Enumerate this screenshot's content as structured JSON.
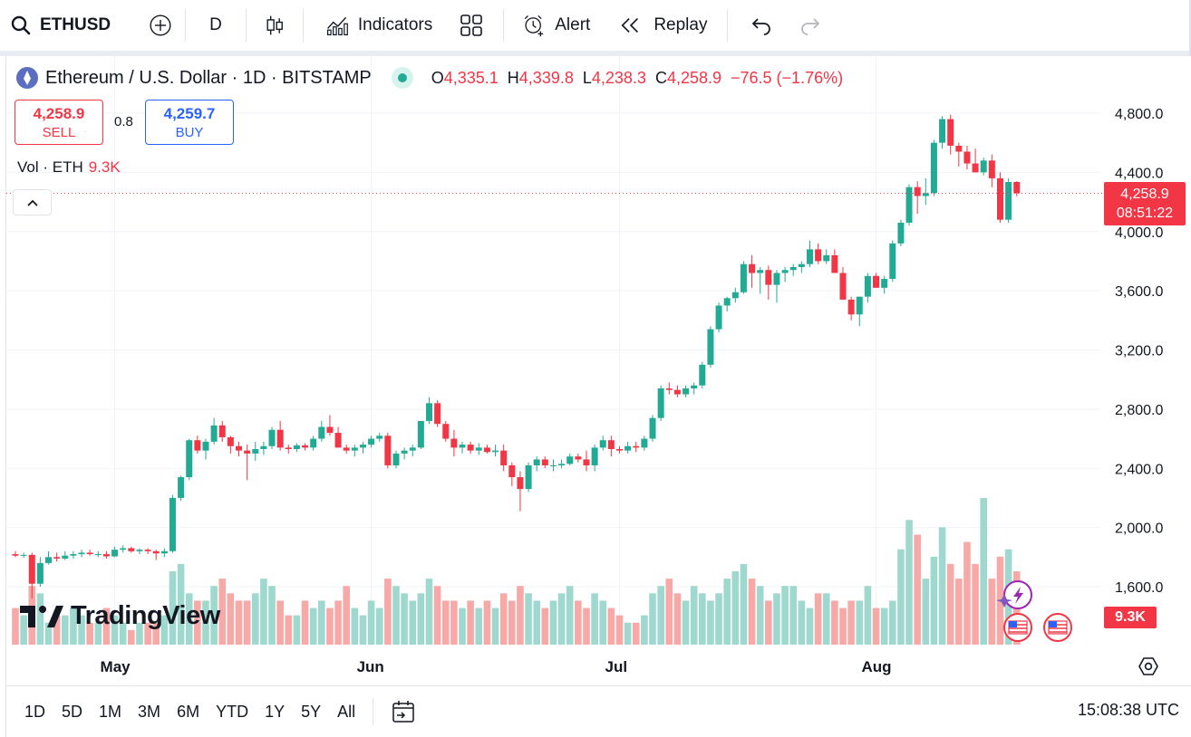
{
  "toolbar": {
    "symbol": "ETHUSD",
    "interval": "D",
    "indicators_label": "Indicators",
    "alert_label": "Alert",
    "replay_label": "Replay"
  },
  "legend": {
    "title": "Ethereum / U.S. Dollar · 1D · BITSTAMP",
    "o_key": "O",
    "o_val": "4,335.1",
    "h_key": "H",
    "h_val": "4,339.8",
    "l_key": "L",
    "l_val": "4,238.3",
    "c_key": "C",
    "c_val": "4,258.9",
    "change": "−76.5 (−1.76%)"
  },
  "trade": {
    "sell_price": "4,258.9",
    "sell_label": "SELL",
    "spread": "0.8",
    "buy_price": "4,259.7",
    "buy_label": "BUY"
  },
  "volume": {
    "label": "Vol · ETH",
    "value": "9.3K"
  },
  "brand": {
    "name": "TradingView"
  },
  "price_tag": {
    "price": "4,258.9",
    "countdown": "08:51:22"
  },
  "vol_tag": "9.3K",
  "bottom": {
    "ranges": [
      "1D",
      "5D",
      "1M",
      "3M",
      "6M",
      "YTD",
      "1Y",
      "5Y",
      "All"
    ],
    "clock": "15:08:38 UTC"
  },
  "colors": {
    "up": "#22ab94",
    "down": "#f23645",
    "up_vol": "#9fd8cf",
    "down_vol": "#f7a9a8"
  },
  "chart_data": {
    "type": "candlestick",
    "y_axis_ticks": [
      "4,800.0",
      "4,400.0",
      "4,000.0",
      "3,600.0",
      "3,200.0",
      "2,800.0",
      "2,400.0",
      "2,000.0",
      "1,600.0"
    ],
    "y_axis_values": [
      4800,
      4400,
      4000,
      3600,
      3200,
      2800,
      2400,
      2000,
      1600
    ],
    "x_axis_labels": [
      "May",
      "Jun",
      "Jul",
      "Aug"
    ],
    "x_label_indices": [
      12,
      43,
      73,
      104
    ],
    "current_price": 4258.9,
    "candles": [
      [
        1820,
        1840,
        1800,
        1810
      ],
      [
        1810,
        1830,
        1795,
        1815
      ],
      [
        1815,
        1830,
        1520,
        1620
      ],
      [
        1620,
        1800,
        1600,
        1760
      ],
      [
        1760,
        1840,
        1750,
        1800
      ],
      [
        1800,
        1830,
        1770,
        1790
      ],
      [
        1790,
        1840,
        1780,
        1810
      ],
      [
        1810,
        1840,
        1790,
        1820
      ],
      [
        1820,
        1850,
        1800,
        1830
      ],
      [
        1830,
        1850,
        1810,
        1820
      ],
      [
        1820,
        1840,
        1800,
        1820
      ],
      [
        1820,
        1840,
        1790,
        1805
      ],
      [
        1805,
        1870,
        1800,
        1850
      ],
      [
        1850,
        1880,
        1830,
        1860
      ],
      [
        1860,
        1870,
        1830,
        1840
      ],
      [
        1840,
        1860,
        1820,
        1850
      ],
      [
        1850,
        1860,
        1820,
        1840
      ],
      [
        1840,
        1850,
        1780,
        1825
      ],
      [
        1825,
        1860,
        1800,
        1840
      ],
      [
        1840,
        2220,
        1830,
        2200
      ],
      [
        2200,
        2350,
        2180,
        2340
      ],
      [
        2340,
        2600,
        2320,
        2590
      ],
      [
        2590,
        2620,
        2500,
        2520
      ],
      [
        2520,
        2600,
        2460,
        2580
      ],
      [
        2580,
        2740,
        2560,
        2690
      ],
      [
        2690,
        2720,
        2580,
        2610
      ],
      [
        2610,
        2620,
        2500,
        2550
      ],
      [
        2550,
        2580,
        2480,
        2520
      ],
      [
        2520,
        2560,
        2320,
        2500
      ],
      [
        2500,
        2580,
        2450,
        2530
      ],
      [
        2530,
        2580,
        2490,
        2550
      ],
      [
        2550,
        2680,
        2530,
        2660
      ],
      [
        2660,
        2720,
        2520,
        2540
      ],
      [
        2540,
        2560,
        2500,
        2530
      ],
      [
        2530,
        2570,
        2510,
        2555
      ],
      [
        2555,
        2570,
        2520,
        2540
      ],
      [
        2540,
        2620,
        2520,
        2600
      ],
      [
        2600,
        2720,
        2580,
        2680
      ],
      [
        2680,
        2760,
        2620,
        2640
      ],
      [
        2640,
        2680,
        2550,
        2540
      ],
      [
        2540,
        2560,
        2500,
        2520
      ],
      [
        2520,
        2560,
        2480,
        2540
      ],
      [
        2540,
        2580,
        2500,
        2560
      ],
      [
        2560,
        2620,
        2540,
        2600
      ],
      [
        2600,
        2640,
        2580,
        2620
      ],
      [
        2620,
        2640,
        2400,
        2420
      ],
      [
        2420,
        2520,
        2400,
        2500
      ],
      [
        2500,
        2540,
        2460,
        2520
      ],
      [
        2520,
        2560,
        2480,
        2540
      ],
      [
        2540,
        2720,
        2530,
        2720
      ],
      [
        2720,
        2880,
        2700,
        2840
      ],
      [
        2840,
        2860,
        2680,
        2700
      ],
      [
        2700,
        2720,
        2580,
        2600
      ],
      [
        2600,
        2660,
        2480,
        2540
      ],
      [
        2540,
        2580,
        2500,
        2560
      ],
      [
        2560,
        2580,
        2500,
        2520
      ],
      [
        2520,
        2570,
        2490,
        2540
      ],
      [
        2540,
        2560,
        2500,
        2510
      ],
      [
        2510,
        2560,
        2480,
        2520
      ],
      [
        2520,
        2560,
        2380,
        2420
      ],
      [
        2420,
        2440,
        2280,
        2340
      ],
      [
        2340,
        2380,
        2110,
        2260
      ],
      [
        2260,
        2440,
        2240,
        2420
      ],
      [
        2420,
        2480,
        2380,
        2460
      ],
      [
        2460,
        2480,
        2400,
        2420
      ],
      [
        2420,
        2460,
        2380,
        2420
      ],
      [
        2420,
        2460,
        2400,
        2430
      ],
      [
        2430,
        2500,
        2420,
        2480
      ],
      [
        2480,
        2500,
        2440,
        2460
      ],
      [
        2460,
        2520,
        2380,
        2420
      ],
      [
        2420,
        2560,
        2380,
        2540
      ],
      [
        2540,
        2620,
        2520,
        2590
      ],
      [
        2590,
        2620,
        2480,
        2530
      ],
      [
        2530,
        2550,
        2500,
        2520
      ],
      [
        2520,
        2580,
        2500,
        2550
      ],
      [
        2550,
        2580,
        2510,
        2540
      ],
      [
        2540,
        2620,
        2520,
        2600
      ],
      [
        2600,
        2760,
        2580,
        2740
      ],
      [
        2740,
        2960,
        2720,
        2940
      ],
      [
        2940,
        2980,
        2900,
        2930
      ],
      [
        2930,
        2960,
        2880,
        2900
      ],
      [
        2900,
        2960,
        2880,
        2940
      ],
      [
        2940,
        2980,
        2900,
        2960
      ],
      [
        2960,
        3120,
        2940,
        3100
      ],
      [
        3100,
        3360,
        3080,
        3340
      ],
      [
        3340,
        3520,
        3320,
        3500
      ],
      [
        3500,
        3560,
        3460,
        3550
      ],
      [
        3550,
        3620,
        3520,
        3590
      ],
      [
        3590,
        3800,
        3580,
        3780
      ],
      [
        3780,
        3840,
        3620,
        3720
      ],
      [
        3720,
        3760,
        3580,
        3740
      ],
      [
        3740,
        3770,
        3540,
        3640
      ],
      [
        3640,
        3740,
        3520,
        3720
      ],
      [
        3720,
        3760,
        3660,
        3740
      ],
      [
        3740,
        3780,
        3700,
        3760
      ],
      [
        3760,
        3800,
        3720,
        3780
      ],
      [
        3780,
        3940,
        3760,
        3880
      ],
      [
        3880,
        3920,
        3780,
        3800
      ],
      [
        3800,
        3880,
        3780,
        3840
      ],
      [
        3840,
        3880,
        3720,
        3720
      ],
      [
        3720,
        3760,
        3560,
        3540
      ],
      [
        3540,
        3560,
        3400,
        3440
      ],
      [
        3440,
        3560,
        3360,
        3560
      ],
      [
        3560,
        3720,
        3520,
        3700
      ],
      [
        3700,
        3720,
        3620,
        3620
      ],
      [
        3620,
        3700,
        3580,
        3680
      ],
      [
        3680,
        3940,
        3660,
        3920
      ],
      [
        3920,
        4080,
        3900,
        4060
      ],
      [
        4060,
        4320,
        4040,
        4300
      ],
      [
        4300,
        4340,
        4120,
        4240
      ],
      [
        4240,
        4360,
        4180,
        4260
      ],
      [
        4260,
        4620,
        4240,
        4600
      ],
      [
        4600,
        4780,
        4560,
        4760
      ],
      [
        4760,
        4790,
        4520,
        4580
      ],
      [
        4580,
        4600,
        4440,
        4540
      ],
      [
        4540,
        4580,
        4420,
        4460
      ],
      [
        4460,
        4560,
        4400,
        4400
      ],
      [
        4400,
        4500,
        4380,
        4480
      ],
      [
        4480,
        4520,
        4300,
        4360
      ],
      [
        4360,
        4400,
        4060,
        4080
      ],
      [
        4080,
        4360,
        4060,
        4335
      ],
      [
        4335,
        4340,
        4238,
        4259
      ]
    ],
    "volume": [
      5,
      4,
      8,
      7,
      3,
      4,
      4,
      5,
      4,
      3,
      3,
      5,
      4,
      3,
      2,
      3,
      3,
      3,
      4,
      10,
      11,
      7,
      6,
      6,
      8,
      9,
      7,
      6,
      6,
      7,
      9,
      8,
      6,
      4,
      4,
      6,
      5,
      6,
      5,
      6,
      8,
      5,
      4,
      6,
      5,
      9,
      8,
      7,
      6,
      7,
      9,
      8,
      6,
      6,
      5,
      6,
      5,
      6,
      5,
      7,
      6,
      8,
      7,
      6,
      5,
      6,
      7,
      8,
      6,
      5,
      7,
      6,
      5,
      4,
      3,
      3,
      4,
      7,
      8,
      9,
      7,
      6,
      8,
      7,
      6,
      7,
      9,
      10,
      11,
      9,
      8,
      6,
      7,
      8,
      8,
      6,
      5,
      7,
      7,
      6,
      5,
      6,
      6,
      8,
      5,
      5,
      6,
      13,
      17,
      15,
      9,
      12,
      16,
      11,
      9,
      14,
      11,
      20,
      9,
      12,
      13,
      10
    ],
    "volume_unit_max": 20
  }
}
